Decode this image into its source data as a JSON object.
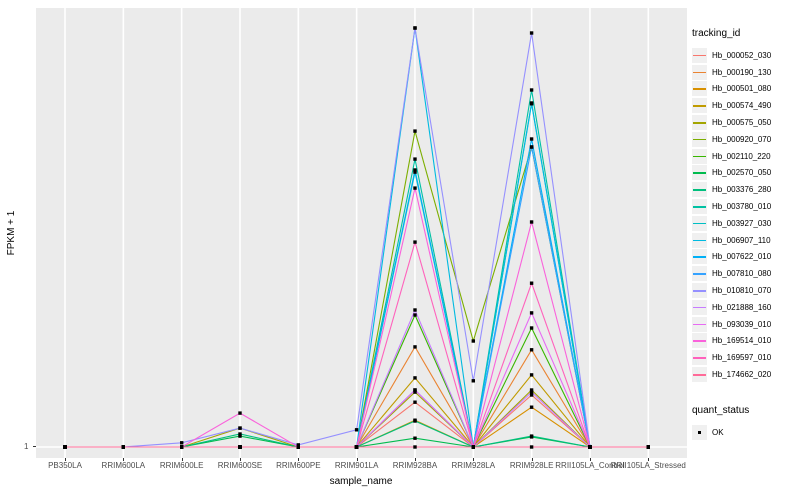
{
  "chart_data": {
    "type": "line",
    "title": "",
    "xlabel": "sample_name",
    "ylabel": "FPKM + 1",
    "x_categories": [
      "PB350LA",
      "RRIM600LA",
      "RRIM600LE",
      "RRIM600SE",
      "RRIM600PE",
      "RRIM901LA",
      "RRIM928BA",
      "RRIM928LA",
      "RRIM928LE",
      "RRII105LA_Control",
      "RRII105LA_Stressed"
    ],
    "y_ticks": [
      "1"
    ],
    "y_axis_note": "only the baseline tick '1' is labeled; series values stored as fraction of panel height above the y=1 baseline (1.0 = tallest peak)",
    "grid": "vertical white gridlines at each category plus baseline line, gray panel",
    "legend_position": "right",
    "legend_title": "tracking_id",
    "legend2_title": "quant_status",
    "legend2_items": [
      "OK"
    ],
    "panel_bg": "#EBEBEB",
    "grid_color": "#FFFFFF",
    "marker_color": "#000000",
    "series": [
      {
        "name": "Hb_000052_030",
        "color": "#F8766D",
        "height_frac": [
          0,
          0,
          0,
          0,
          0,
          0,
          0.107,
          0,
          0.124,
          0,
          0
        ]
      },
      {
        "name": "Hb_000190_130",
        "color": "#EA8331",
        "height_frac": [
          0,
          0,
          0,
          0,
          0,
          0,
          0.239,
          0,
          0.232,
          0,
          0
        ]
      },
      {
        "name": "Hb_000501_080",
        "color": "#D89000",
        "height_frac": [
          0,
          0,
          0,
          0,
          0,
          0,
          0.064,
          0,
          0.095,
          0,
          0
        ]
      },
      {
        "name": "Hb_000574_490",
        "color": "#C09B00",
        "height_frac": [
          0,
          0,
          0,
          0,
          0,
          0,
          0.165,
          0,
          0.172,
          0,
          0
        ]
      },
      {
        "name": "Hb_000575_050",
        "color": "#A3A500",
        "height_frac": [
          0,
          0,
          0,
          0.045,
          0,
          0,
          0.131,
          0,
          0.136,
          0,
          0
        ]
      },
      {
        "name": "Hb_000920_070",
        "color": "#7CAE00",
        "height_frac": [
          0,
          0,
          0,
          0,
          0,
          0,
          0.754,
          0.253,
          0.716,
          0,
          0
        ]
      },
      {
        "name": "Hb_002110_220",
        "color": "#39B600",
        "height_frac": [
          0,
          0,
          0,
          0,
          0,
          0,
          0.315,
          0,
          0.284,
          0,
          0
        ]
      },
      {
        "name": "Hb_002570_050",
        "color": "#00BB4E",
        "height_frac": [
          0,
          0,
          0,
          0.026,
          0,
          0,
          0.021,
          0,
          0.024,
          0,
          0
        ]
      },
      {
        "name": "Hb_003376_280",
        "color": "#00BF7D",
        "height_frac": [
          0,
          0,
          0,
          0.031,
          0,
          0,
          0.062,
          0,
          0.026,
          0,
          0
        ]
      },
      {
        "name": "Hb_003780_010",
        "color": "#00C1A3",
        "height_frac": [
          0,
          0,
          0,
          0,
          0,
          0,
          0.687,
          0,
          0.852,
          0,
          0
        ]
      },
      {
        "name": "Hb_003927_030",
        "color": "#00BFC4",
        "height_frac": [
          0,
          0,
          0,
          0,
          0,
          0,
          0.656,
          0,
          0.821,
          0,
          0
        ]
      },
      {
        "name": "Hb_006907_110",
        "color": "#00BAE0",
        "height_frac": [
          0,
          0,
          0,
          0,
          0,
          0,
          1.0,
          0,
          0.819,
          0,
          0
        ]
      },
      {
        "name": "Hb_007622_010",
        "color": "#00B0F6",
        "height_frac": [
          0,
          0,
          0,
          0,
          0,
          0,
          0.661,
          0,
          0.735,
          0,
          0
        ]
      },
      {
        "name": "Hb_007810_080",
        "color": "#35A2FF",
        "height_frac": [
          0,
          0,
          0,
          0,
          0,
          0,
          0.136,
          0,
          0.716,
          0,
          0
        ]
      },
      {
        "name": "Hb_010810_070",
        "color": "#9590FF",
        "height_frac": [
          0,
          0,
          0.01,
          0.045,
          0.005,
          0.041,
          1.0,
          0.158,
          0.988,
          0,
          0
        ]
      },
      {
        "name": "Hb_021888_160",
        "color": "#C77CFF",
        "height_frac": [
          0,
          0,
          0,
          0,
          0,
          0,
          0.327,
          0,
          0.131,
          0,
          0
        ]
      },
      {
        "name": "Hb_093039_010",
        "color": "#E76BF3",
        "height_frac": [
          0,
          0,
          0,
          0,
          0,
          0,
          0.136,
          0,
          0.32,
          0,
          0
        ]
      },
      {
        "name": "Hb_169514_010",
        "color": "#FA62DB",
        "height_frac": [
          0,
          0,
          0,
          0.081,
          0,
          0,
          0.618,
          0,
          0.537,
          0,
          0
        ]
      },
      {
        "name": "Hb_169597_010",
        "color": "#FF62BC",
        "height_frac": [
          0,
          0,
          0,
          0,
          0,
          0,
          0.489,
          0,
          0.391,
          0,
          0
        ]
      },
      {
        "name": "Hb_174662_020",
        "color": "#FF6A98",
        "height_frac": [
          0,
          0,
          0,
          0,
          0,
          0,
          0,
          0,
          0,
          0,
          0
        ]
      }
    ]
  }
}
